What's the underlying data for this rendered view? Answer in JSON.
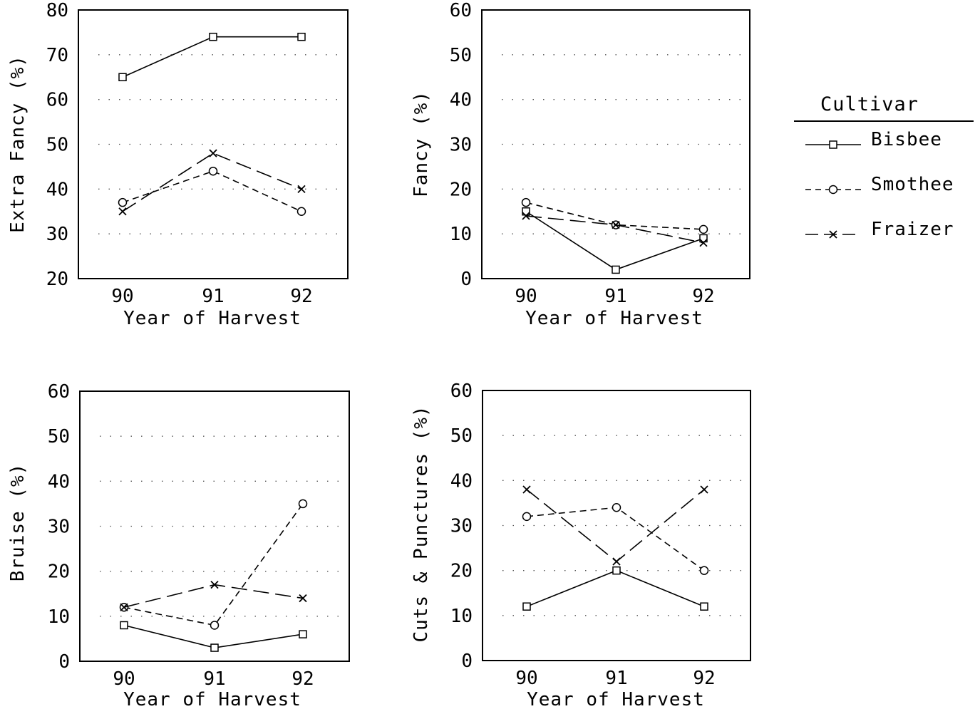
{
  "legend": {
    "title": "Cultivar",
    "entries": [
      {
        "name": "Bisbee",
        "marker": "square",
        "dash": "solid"
      },
      {
        "name": "Smothee",
        "marker": "circle",
        "dash": "short-dash"
      },
      {
        "name": "Fraizer",
        "marker": "x",
        "dash": "long-dash"
      }
    ]
  },
  "chart_data": [
    {
      "type": "line",
      "x": [
        "90",
        "91",
        "92"
      ],
      "xlabel": "Year of Harvest",
      "ylabel": "Extra Fancy (%)",
      "ylim": [
        20,
        80
      ],
      "yticks": [
        20,
        30,
        40,
        50,
        60,
        70,
        80
      ],
      "grid": "dotted horizontal",
      "series": [
        {
          "name": "Bisbee",
          "values": [
            65,
            74,
            74
          ]
        },
        {
          "name": "Smothee",
          "values": [
            37,
            44,
            35
          ]
        },
        {
          "name": "Fraizer",
          "values": [
            35,
            48,
            40
          ]
        }
      ]
    },
    {
      "type": "line",
      "x": [
        "90",
        "91",
        "92"
      ],
      "xlabel": "Year of Harvest",
      "ylabel": "Fancy (%)",
      "ylim": [
        0,
        60
      ],
      "yticks": [
        0,
        10,
        20,
        30,
        40,
        50,
        60
      ],
      "grid": "dotted horizontal",
      "series": [
        {
          "name": "Bisbee",
          "values": [
            15,
            2,
            9
          ]
        },
        {
          "name": "Smothee",
          "values": [
            17,
            12,
            11
          ]
        },
        {
          "name": "Fraizer",
          "values": [
            14,
            12,
            8
          ]
        }
      ]
    },
    {
      "type": "line",
      "x": [
        "90",
        "91",
        "92"
      ],
      "xlabel": "Year of Harvest",
      "ylabel": "Bruise (%)",
      "ylim": [
        0,
        60
      ],
      "yticks": [
        0,
        10,
        20,
        30,
        40,
        50,
        60
      ],
      "grid": "dotted horizontal",
      "series": [
        {
          "name": "Bisbee",
          "values": [
            8,
            3,
            6
          ]
        },
        {
          "name": "Smothee",
          "values": [
            12,
            8,
            35
          ]
        },
        {
          "name": "Fraizer",
          "values": [
            12,
            17,
            14
          ]
        }
      ]
    },
    {
      "type": "line",
      "x": [
        "90",
        "91",
        "92"
      ],
      "xlabel": "Year of Harvest",
      "ylabel": "Cuts & Punctures (%)",
      "ylim": [
        0,
        60
      ],
      "yticks": [
        0,
        10,
        20,
        30,
        40,
        50,
        60
      ],
      "grid": "dotted horizontal",
      "series": [
        {
          "name": "Bisbee",
          "values": [
            12,
            20,
            12
          ]
        },
        {
          "name": "Smothee",
          "values": [
            32,
            34,
            20
          ]
        },
        {
          "name": "Fraizer",
          "values": [
            38,
            22,
            38
          ]
        }
      ]
    }
  ]
}
